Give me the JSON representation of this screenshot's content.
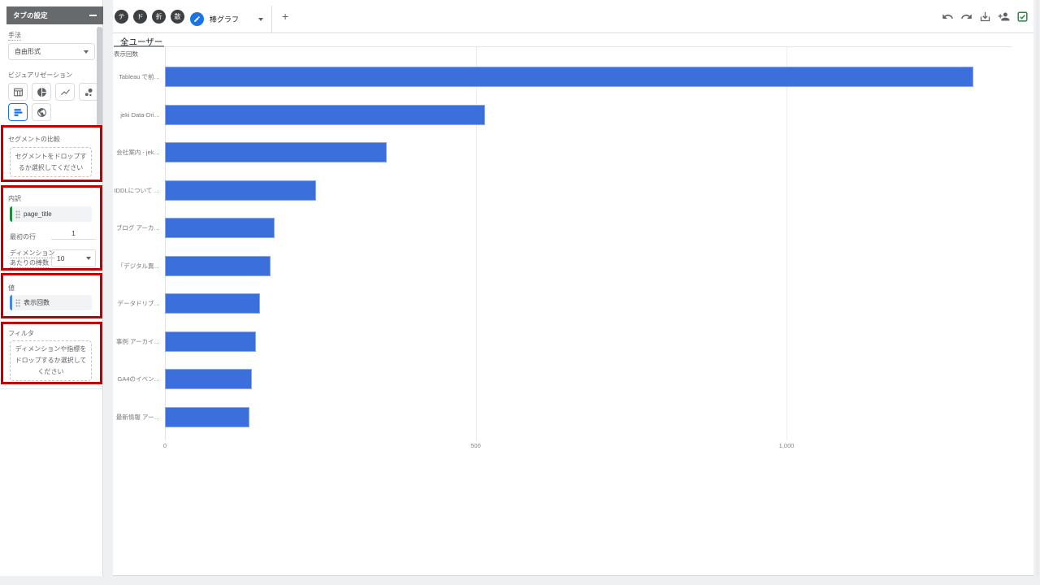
{
  "sidebar": {
    "title": "タブの設定",
    "technique_label": "手法",
    "technique_value": "自由形式",
    "visualization_label": "ビジュアリゼーション",
    "viz_icons": [
      "table-icon",
      "donut-chart-icon",
      "line-chart-icon",
      "scatter-chart-icon",
      "bar-chart-icon",
      "geo-map-icon"
    ],
    "viz_selected": "bar-chart-icon",
    "segment_label": "セグメントの比較",
    "segment_dropzone": "セグメントをドロップするか選択してください",
    "breakdown_label": "内訳",
    "breakdown_chip": "page_title",
    "first_row_label": "最初の行",
    "first_row_value": "1",
    "bars_per_dimension_label_line1": "ディメンション",
    "bars_per_dimension_label_line2": "あたりの棒数",
    "bars_per_dimension_value": "10",
    "values_label": "値",
    "values_chip": "表示回数",
    "filter_label": "フィルタ",
    "filter_dropzone": "ディメンションや指標をドロップするか選択してください"
  },
  "toolbar": {
    "collapsed_tabs": [
      "テ",
      "ド",
      "折",
      "散"
    ],
    "active_tab_label": "棒グラフ",
    "add_tab_label": "+",
    "action_icons": [
      "undo-icon",
      "redo-icon",
      "download-icon",
      "share-add-user-icon",
      "export-sheets-icon"
    ]
  },
  "chart": {
    "segment_tab_label": "全ユーザー",
    "axis_metric_label": "表示回数"
  },
  "chart_data": {
    "type": "bar",
    "orientation": "horizontal",
    "title": "全ユーザー",
    "xlabel": "表示回数",
    "ylabel": "page_title",
    "categories": [
      "Tableau で前…",
      "jeki Data-Dri…",
      "会社案内 - jek…",
      "IDDLについて …",
      "ブログ アーカ…",
      "「デジタル異…",
      "データドリブ…",
      "事例 アーカイ…",
      "GA4のイベン…",
      "最新情報 アー…"
    ],
    "values": [
      1300,
      515,
      357,
      243,
      176,
      170,
      153,
      146,
      140,
      136
    ],
    "xlim": [
      0,
      1362
    ],
    "xticks": [
      {
        "value": 0,
        "label": "0"
      },
      {
        "value": 500,
        "label": "500"
      },
      {
        "value": 1000,
        "label": "1,000"
      }
    ],
    "grid": true,
    "legend": false
  },
  "colors": {
    "accent_blue": "#1a73e8",
    "bar_fill": "#3a6fdc",
    "bar_border": "#8aa7ec",
    "dimension_green": "#1e8e3e",
    "metric_blue": "#4285f4",
    "annotation_red": "#c00000",
    "sheets_green": "#1e8e3e"
  }
}
